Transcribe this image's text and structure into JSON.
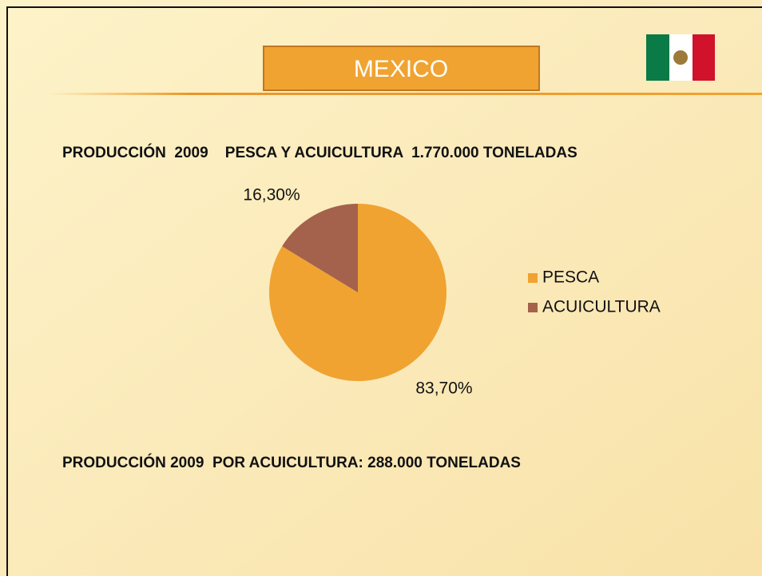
{
  "chart_data": {
    "type": "pie",
    "title": "MEXICO",
    "annotations": [
      "PRODUCCIÓN  2009    PESCA Y ACUICULTURA  1.770.000 TONELADAS",
      "PRODUCCIÓN 2009  POR ACUICULTURA: 288.000 TONELADAS"
    ],
    "categories": [
      "PESCA",
      "ACUICULTURA"
    ],
    "values": [
      83.7,
      16.3
    ],
    "value_labels": [
      "83,70%",
      "16,30%"
    ],
    "colors": [
      "#f0a331",
      "#a4614c"
    ],
    "legend": "right"
  }
}
